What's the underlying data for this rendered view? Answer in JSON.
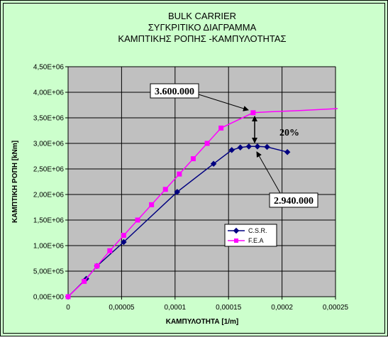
{
  "chart_data": {
    "type": "line",
    "title": [
      "BULK CARRIER",
      "ΣΥΓΚΡΙΤΙΚΟ ΔΙΑΓΡΑΜΜΑ",
      "ΚΑΜΠΤΙΚΗΣ ΡΟΠΗΣ -ΚΑΜΠΥΛΟΤΗΤΑΣ"
    ],
    "xlabel": "ΚΑΜΠΥΛΟΤΗΤΑ [1/m]",
    "ylabel": "ΚΑΜΠΤΙΚΗ ΡΟΠΗ [kNm]",
    "xlim": [
      0,
      0.00025
    ],
    "ylim": [
      0,
      4500000
    ],
    "x_ticks": [
      0,
      5e-05,
      0.0001,
      0.00015,
      0.0002,
      0.00025
    ],
    "x_tick_labels": [
      "0",
      "0,00005",
      "0,0001",
      "0,00015",
      "0,0002",
      "0,00025"
    ],
    "y_ticks": [
      0,
      500000,
      1000000,
      1500000,
      2000000,
      2500000,
      3000000,
      3500000,
      4000000,
      4500000
    ],
    "y_tick_labels": [
      "0,00E+00",
      "5,00E+05",
      "1,00E+06",
      "1,50E+06",
      "2,00E+06",
      "2,50E+06",
      "3,00E+06",
      "3,50E+06",
      "4,00E+06",
      "4,50E+06"
    ],
    "grid": true,
    "legend_position": "center-right",
    "series": [
      {
        "name": "C.S.R.",
        "color": "#000080",
        "marker": "diamond",
        "x": [
          0,
          1.7e-05,
          2.7e-05,
          5.2e-05,
          0.000102,
          0.000136,
          0.000153,
          0.000161,
          0.000169,
          0.000177,
          0.000186,
          0.000205
        ],
        "y": [
          0,
          350000,
          600000,
          1070000,
          2050000,
          2600000,
          2870000,
          2920000,
          2940000,
          2940000,
          2930000,
          2830000
        ]
      },
      {
        "name": "F.E.A",
        "color": "#ff00ff",
        "marker": "square",
        "x": [
          0,
          1.5e-05,
          2.7e-05,
          3.9e-05,
          5.2e-05,
          6.5e-05,
          7.8e-05,
          9.1e-05,
          0.000104,
          0.000117,
          0.00013,
          0.000143,
          0.000173
        ],
        "x_line_end": [
          0.00019,
          0.000215,
          0.000252
        ],
        "y": [
          0,
          300000,
          600000,
          900000,
          1200000,
          1500000,
          1800000,
          2100000,
          2400000,
          2700000,
          3000000,
          3300000,
          3600000
        ],
        "y_line_end": [
          3620000,
          3640000,
          3680000
        ]
      }
    ],
    "annotations": [
      {
        "id": "fea-peak",
        "text": "3.600.000",
        "x": 0.000173,
        "y": 3600000
      },
      {
        "id": "csr-peak",
        "text": "2.940.000",
        "x": 0.000173,
        "y": 2940000
      },
      {
        "id": "difference",
        "text": "20%",
        "x": 0.000173,
        "y": 3270000
      }
    ]
  }
}
